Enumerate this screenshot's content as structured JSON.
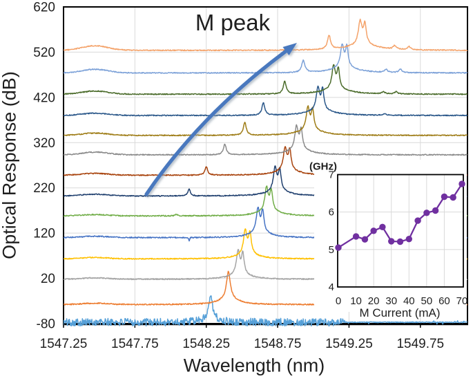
{
  "annotation": {
    "m_peak_label": "M peak"
  },
  "chart_data": [
    {
      "type": "line",
      "title": "",
      "xlabel": "Wavelength (nm)",
      "ylabel": "Optical Response (dB)",
      "xlim": [
        1547.25,
        1550.08
      ],
      "ylim": [
        -80,
        620
      ],
      "grid": true,
      "x_ticks": [
        "1547.25",
        "1547.75",
        "1548.25",
        "1548.75",
        "1549.25",
        "1549.75"
      ],
      "x_tick_values": [
        1547.25,
        1547.75,
        1548.25,
        1548.75,
        1549.25,
        1549.75
      ],
      "y_ticks": [
        "620",
        "520",
        "420",
        "320",
        "220",
        "120",
        "20",
        "-80"
      ],
      "y_tick_values": [
        620,
        520,
        420,
        320,
        220,
        120,
        20,
        -80
      ],
      "series_note": "14 stacked spectra, offset baselines, main lasing peak shifts right with current; small M peak satellite indicated by arrow",
      "series": [
        {
          "color": "#56A0D8",
          "base": -77,
          "hump": 0,
          "noise": 8.5,
          "peaks": [
            [
              1548.28,
              58,
              0.014
            ],
            [
              1548.28,
              8,
              0.06
            ]
          ]
        },
        {
          "color": "#ED7D31",
          "base": -38,
          "hump": 3,
          "noise": 1.3,
          "peaks": [
            [
              1548.405,
              60,
              0.016
            ],
            [
              1548.41,
              13,
              0.08
            ]
          ]
        },
        {
          "color": "#A5A5A5",
          "base": 18,
          "hump": 3,
          "noise": 1.2,
          "peaks": [
            [
              1548.473,
              50,
              0.014
            ],
            [
              1548.506,
              43,
              0.011
            ],
            [
              1548.49,
              12,
              0.08
            ]
          ]
        },
        {
          "color": "#FFC000",
          "base": 63,
          "hump": 3,
          "noise": 1.2,
          "peaks": [
            [
              1548.523,
              51,
              0.014
            ],
            [
              1548.556,
              44,
              0.011
            ],
            [
              1548.54,
              12,
              0.08
            ]
          ]
        },
        {
          "color": "#4472C4",
          "base": 110,
          "hump": 3,
          "noise": 1.2,
          "peaks": [
            [
              1548.612,
              52,
              0.014
            ],
            [
              1548.645,
              45,
              0.011
            ],
            [
              1548.63,
              12,
              0.085
            ],
            [
              1548.13,
              -9,
              0.003
            ]
          ]
        },
        {
          "color": "#70AD47",
          "base": 158,
          "hump": 3,
          "noise": 1.2,
          "peaks": [
            [
              1548.672,
              50,
              0.014
            ],
            [
              1548.705,
              43,
              0.011
            ],
            [
              1548.69,
              12,
              0.085
            ],
            [
              1548.04,
              4,
              0.008
            ]
          ]
        },
        {
          "color": "#1F3F6E",
          "base": 202,
          "hump": 4,
          "noise": 1.1,
          "peaks": [
            [
              1548.732,
              50,
              0.014
            ],
            [
              1548.765,
              44,
              0.011
            ],
            [
              1548.75,
              12,
              0.09
            ],
            [
              1548.13,
              16,
              0.01
            ]
          ]
        },
        {
          "color": "#A8430D",
          "base": 248,
          "hump": 4,
          "noise": 1.1,
          "peaks": [
            [
              1548.802,
              48,
              0.014
            ],
            [
              1548.835,
              42,
              0.011
            ],
            [
              1548.82,
              12,
              0.09
            ],
            [
              1548.25,
              19,
              0.011
            ]
          ]
        },
        {
          "color": "#8A8A8A",
          "base": 293,
          "hump": 6,
          "noise": 1.1,
          "peaks": [
            [
              1548.882,
              50,
              0.014
            ],
            [
              1548.915,
              43,
              0.011
            ],
            [
              1548.9,
              12,
              0.095
            ],
            [
              1548.38,
              23,
              0.012
            ]
          ]
        },
        {
          "color": "#9E7C16",
          "base": 336,
          "hump": 5,
          "noise": 1.1,
          "peaks": [
            [
              1548.962,
              50,
              0.014
            ],
            [
              1548.995,
              43,
              0.011
            ],
            [
              1548.98,
              12,
              0.1
            ],
            [
              1548.52,
              29,
              0.012
            ]
          ]
        },
        {
          "color": "#2A5789",
          "base": 380,
          "hump": 5,
          "noise": 1.1,
          "peaks": [
            [
              1549.032,
              49,
              0.014
            ],
            [
              1549.065,
              44,
              0.011
            ],
            [
              1549.05,
              12,
              0.105
            ],
            [
              1548.65,
              28,
              0.012
            ],
            [
              1549.5,
              3,
              0.013
            ]
          ]
        },
        {
          "color": "#4A6B2A",
          "base": 427,
          "hump": 7,
          "noise": 1.1,
          "peaks": [
            [
              1549.142,
              50,
              0.014
            ],
            [
              1549.175,
              42,
              0.011
            ],
            [
              1549.16,
              12,
              0.11
            ],
            [
              1548.8,
              28,
              0.012
            ],
            [
              1549.49,
              4,
              0.013
            ],
            [
              1549.58,
              5,
              0.012
            ]
          ]
        },
        {
          "color": "#7CA1D8",
          "base": 474,
          "hump": 8,
          "noise": 1.1,
          "peaks": [
            [
              1549.202,
              48,
              0.015
            ],
            [
              1549.235,
              43,
              0.011
            ],
            [
              1549.22,
              12,
              0.11
            ],
            [
              1548.93,
              27,
              0.013
            ],
            [
              1549.51,
              6,
              0.013
            ],
            [
              1549.61,
              8,
              0.012
            ]
          ]
        },
        {
          "color": "#F4A269",
          "base": 524,
          "hump": 10,
          "noise": 1.1,
          "peaks": [
            [
              1549.328,
              50,
              0.015
            ],
            [
              1549.361,
              43,
              0.012
            ],
            [
              1549.345,
              13,
              0.12
            ],
            [
              1549.11,
              31,
              0.013
            ],
            [
              1549.57,
              8,
              0.013
            ],
            [
              1549.67,
              7,
              0.012
            ]
          ]
        }
      ]
    },
    {
      "type": "line",
      "inset": true,
      "markers": true,
      "ylabel_top": "(GHz)",
      "xlabel": "M Current (mA)",
      "xlim": [
        0,
        70
      ],
      "ylim": [
        4,
        7
      ],
      "grid": true,
      "x_ticks": [
        "0",
        "10",
        "20",
        "30",
        "40",
        "50",
        "60",
        "70"
      ],
      "x_tick_values": [
        0,
        10,
        20,
        30,
        40,
        50,
        60,
        70
      ],
      "y_ticks": [
        "7",
        "6",
        "5",
        "4"
      ],
      "y_tick_values": [
        7,
        6,
        5,
        4
      ],
      "color": "#7030A0",
      "points": [
        [
          0,
          5.05
        ],
        [
          10,
          5.35
        ],
        [
          15,
          5.27
        ],
        [
          20,
          5.5
        ],
        [
          25,
          5.6
        ],
        [
          30,
          5.22
        ],
        [
          35,
          5.21
        ],
        [
          40,
          5.28
        ],
        [
          45,
          5.77
        ],
        [
          50,
          5.98
        ],
        [
          55,
          6.04
        ],
        [
          60,
          6.41
        ],
        [
          65,
          6.39
        ],
        [
          70,
          6.75
        ]
      ]
    }
  ],
  "arrow": {
    "color": "#4878BE"
  },
  "colors": {
    "grid": "#d9d9d9",
    "axis": "#000000",
    "text": "#1f1f1f",
    "background": "#ffffff"
  }
}
